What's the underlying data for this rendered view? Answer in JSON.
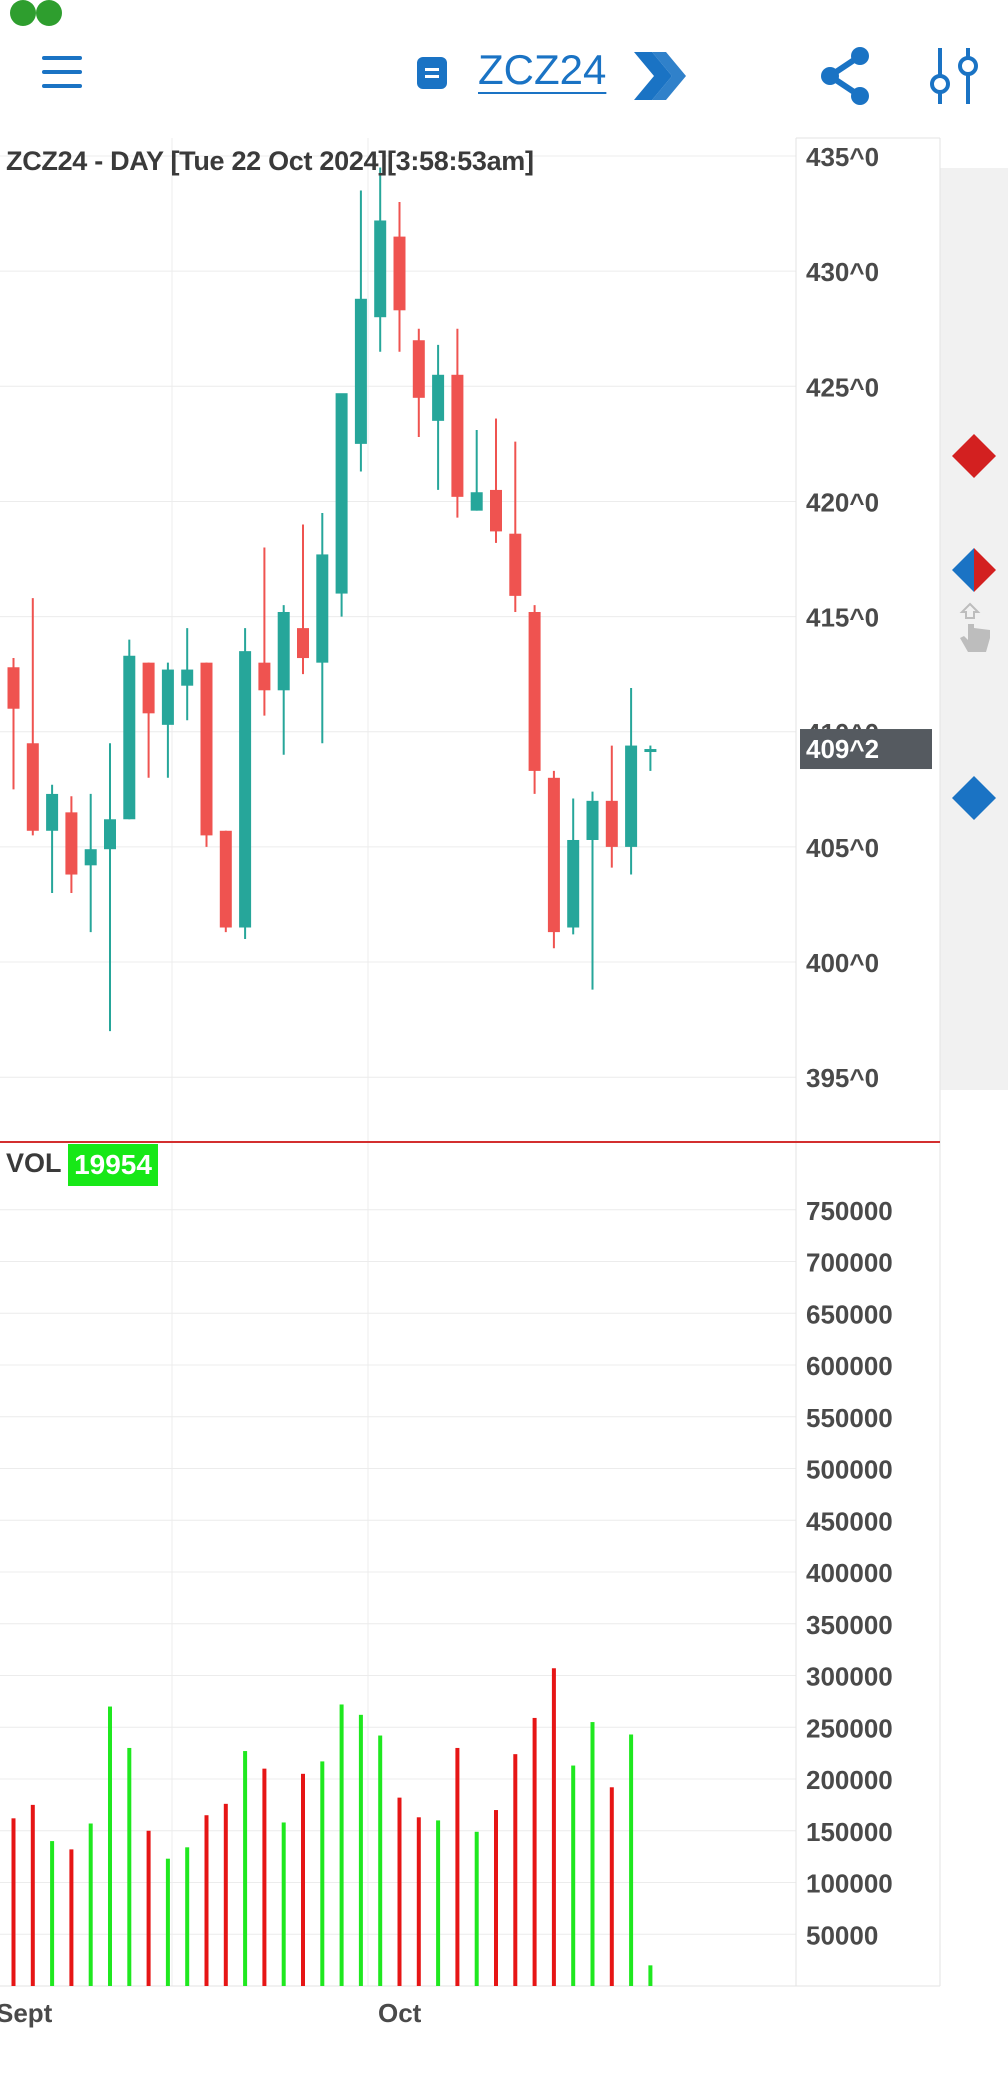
{
  "header": {
    "symbol": "ZCZ24",
    "menu_icon": "hamburger-menu-icon",
    "symbol_icon": "list-icon",
    "next_icon": "double-chevron-right-icon",
    "share_icon": "share-icon",
    "settings_icon": "sliders-icon",
    "accent": "#1a73c4"
  },
  "chart_title": "ZCZ24 - DAY [Tue 22 Oct 2024][3:58:53am]",
  "last_price_label": "409^2",
  "volume": {
    "label": "VOL",
    "last_value": "19954"
  },
  "markers": [
    "red-diamond-icon",
    "split-diamond-icon",
    "hand-pointer-icon",
    "blue-diamond-icon"
  ],
  "colors": {
    "up": "#26a69a",
    "down": "#ef5350",
    "vol_up": "#1fe81f",
    "vol_down": "#e61515",
    "separator": "#d32f2f",
    "price_tag": "#555a60"
  },
  "chart_data": [
    {
      "type": "candlestick",
      "title": "ZCZ24 - DAY [Tue 22 Oct 2024][3:58:53am]",
      "ylim": [
        393,
        436
      ],
      "y_tick_labels": [
        "435^0",
        "430^0",
        "425^0",
        "420^0",
        "415^0",
        "410^0",
        "405^0",
        "400^0",
        "395^0"
      ],
      "y_ticks": [
        435,
        430,
        425,
        420,
        415,
        410,
        405,
        400,
        395
      ],
      "x_tick_labels": [
        "Sept",
        "Oct"
      ],
      "last_price": 409.25,
      "candles": [
        {
          "o": 412.8,
          "h": 413.2,
          "l": 407.5,
          "c": 411.0
        },
        {
          "o": 409.5,
          "h": 415.8,
          "l": 405.5,
          "c": 405.7
        },
        {
          "o": 405.7,
          "h": 407.7,
          "l": 403.0,
          "c": 407.3
        },
        {
          "o": 406.5,
          "h": 407.2,
          "l": 403.0,
          "c": 403.8
        },
        {
          "o": 404.2,
          "h": 407.3,
          "l": 401.3,
          "c": 404.9
        },
        {
          "o": 404.9,
          "h": 409.5,
          "l": 397.0,
          "c": 406.2
        },
        {
          "o": 406.2,
          "h": 414.0,
          "l": 406.2,
          "c": 413.3
        },
        {
          "o": 413.0,
          "h": 413.0,
          "l": 408.0,
          "c": 410.8
        },
        {
          "o": 410.3,
          "h": 413.0,
          "l": 408.0,
          "c": 412.7
        },
        {
          "o": 412.0,
          "h": 414.5,
          "l": 410.5,
          "c": 412.7
        },
        {
          "o": 413.0,
          "h": 413.0,
          "l": 405.0,
          "c": 405.5
        },
        {
          "o": 405.7,
          "h": 405.7,
          "l": 401.3,
          "c": 401.5
        },
        {
          "o": 401.5,
          "h": 414.5,
          "l": 401.0,
          "c": 413.5
        },
        {
          "o": 413.0,
          "h": 418.0,
          "l": 410.7,
          "c": 411.8
        },
        {
          "o": 411.8,
          "h": 415.5,
          "l": 409.0,
          "c": 415.2
        },
        {
          "o": 414.5,
          "h": 419.0,
          "l": 412.5,
          "c": 413.2
        },
        {
          "o": 413.0,
          "h": 419.5,
          "l": 409.5,
          "c": 417.7
        },
        {
          "o": 416.0,
          "h": 424.5,
          "l": 415.0,
          "c": 424.7
        },
        {
          "o": 422.5,
          "h": 433.5,
          "l": 421.3,
          "c": 428.8
        },
        {
          "o": 428.0,
          "h": 434.5,
          "l": 426.5,
          "c": 432.2
        },
        {
          "o": 431.5,
          "h": 433.0,
          "l": 426.5,
          "c": 428.3
        },
        {
          "o": 427.0,
          "h": 427.5,
          "l": 422.8,
          "c": 424.5
        },
        {
          "o": 423.5,
          "h": 426.8,
          "l": 420.5,
          "c": 425.5
        },
        {
          "o": 425.5,
          "h": 427.5,
          "l": 419.3,
          "c": 420.2
        },
        {
          "o": 419.6,
          "h": 423.1,
          "l": 419.6,
          "c": 420.4
        },
        {
          "o": 420.5,
          "h": 423.6,
          "l": 418.2,
          "c": 418.7
        },
        {
          "o": 418.6,
          "h": 422.6,
          "l": 415.2,
          "c": 415.9
        },
        {
          "o": 415.2,
          "h": 415.5,
          "l": 407.3,
          "c": 408.3
        },
        {
          "o": 408.0,
          "h": 408.3,
          "l": 400.6,
          "c": 401.3
        },
        {
          "o": 401.5,
          "h": 407.1,
          "l": 401.2,
          "c": 405.3
        },
        {
          "o": 405.3,
          "h": 407.4,
          "l": 398.8,
          "c": 407.0
        },
        {
          "o": 407.0,
          "h": 409.4,
          "l": 404.1,
          "c": 405.0
        },
        {
          "o": 405.0,
          "h": 411.9,
          "l": 403.8,
          "c": 409.4
        },
        {
          "o": 409.2,
          "h": 409.4,
          "l": 408.3,
          "c": 409.25
        }
      ]
    },
    {
      "type": "bar",
      "title": "VOL",
      "ylim": [
        0,
        780000
      ],
      "y_tick_labels": [
        "750000",
        "700000",
        "650000",
        "600000",
        "550000",
        "500000",
        "450000",
        "400000",
        "350000",
        "300000",
        "250000",
        "200000",
        "150000",
        "100000",
        "50000"
      ],
      "y_ticks": [
        750000,
        700000,
        650000,
        600000,
        550000,
        500000,
        450000,
        400000,
        350000,
        300000,
        250000,
        200000,
        150000,
        100000,
        50000
      ],
      "values": [
        162000,
        175000,
        140000,
        132000,
        157000,
        270000,
        230000,
        150000,
        123000,
        134000,
        165000,
        176000,
        227000,
        210000,
        158000,
        205000,
        217000,
        272000,
        262000,
        242000,
        182000,
        163000,
        160000,
        230000,
        149000,
        170000,
        224000,
        259000,
        307000,
        213000,
        255000,
        192000,
        243000,
        19954
      ],
      "directions": [
        "down",
        "down",
        "up",
        "down",
        "up",
        "up",
        "up",
        "down",
        "up",
        "up",
        "down",
        "down",
        "up",
        "down",
        "up",
        "down",
        "up",
        "up",
        "up",
        "up",
        "down",
        "down",
        "up",
        "down",
        "up",
        "down",
        "down",
        "down",
        "down",
        "up",
        "up",
        "down",
        "up",
        "up"
      ]
    }
  ]
}
